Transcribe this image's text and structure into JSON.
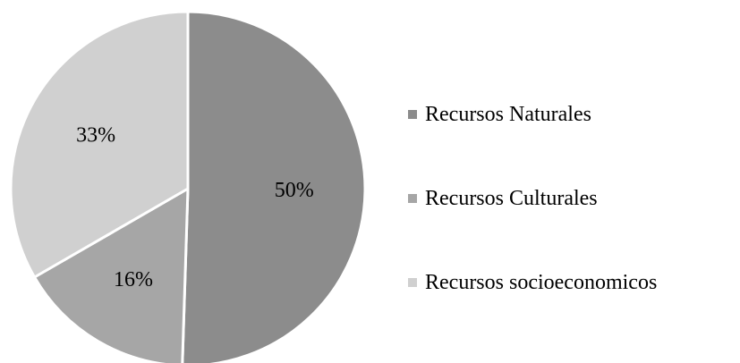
{
  "chart_data": {
    "type": "pie",
    "categories": [
      "Recursos Naturales",
      "Recursos Culturales",
      "Recursos socioeconomicos"
    ],
    "values": [
      50,
      16,
      33
    ],
    "labels": [
      "50%",
      "16%",
      "33%"
    ],
    "colors": [
      "#8c8c8c",
      "#a6a6a6",
      "#d0d0d0"
    ],
    "start_angle": "12 o'clock",
    "direction": "clockwise",
    "legend_position": "right"
  }
}
